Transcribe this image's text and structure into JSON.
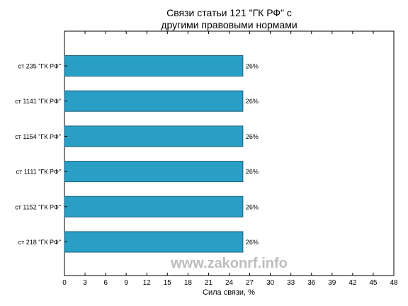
{
  "chart_data": {
    "type": "bar",
    "orientation": "horizontal",
    "title": "Связи статьи 121 \"ГК РФ\" с\nдругими правовыми нормами",
    "xlabel": "Сила связи, %",
    "ylabel": "",
    "categories": [
      "ст 235 \"ГК РФ\"",
      "ст 1141 \"ГК РФ\"",
      "ст 1154 \"ГК РФ\"",
      "ст 1111 \"ГК РФ\"",
      "ст 1152 \"ГК РФ\"",
      "ст 218 \"ГК РФ\""
    ],
    "values": [
      26,
      26,
      26,
      26,
      26,
      26
    ],
    "value_labels": [
      "26%",
      "26%",
      "26%",
      "26%",
      "26%",
      "26%"
    ],
    "xlim": [
      0,
      48
    ],
    "xticks": [
      0,
      3,
      6,
      9,
      12,
      15,
      18,
      21,
      24,
      27,
      30,
      33,
      36,
      39,
      42,
      45,
      48
    ],
    "grid": false,
    "legend": "none",
    "bar_color": "#2a9fc5",
    "bar_edge_color": "#1d5f78"
  },
  "watermark": "www.zakonrf.info"
}
